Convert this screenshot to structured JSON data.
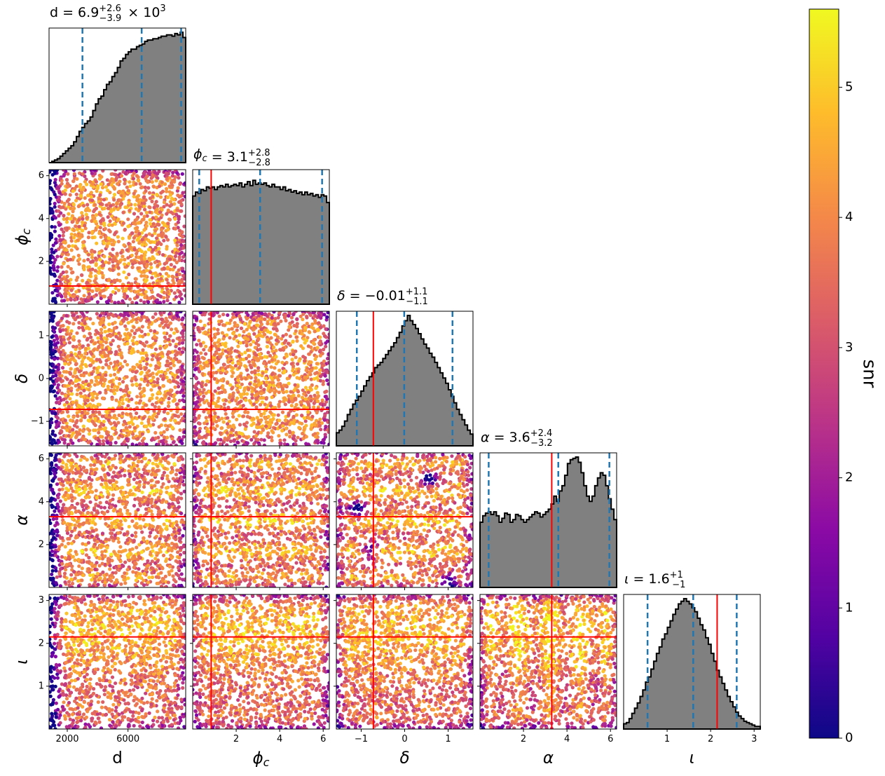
{
  "figure_type": "corner plot",
  "colorbar": {
    "label": "snr",
    "colormap": "plasma",
    "range": [
      0,
      5.6
    ],
    "ticks": [
      "0",
      "1",
      "2",
      "3",
      "4",
      "5"
    ]
  },
  "colors": {
    "histogram_fill": "#808080",
    "histogram_edge": "#000000",
    "quantile_line": "#1f77b4",
    "true_value_line": "#ff0000"
  },
  "chart_data": {
    "type": "scatter",
    "params": [
      {
        "key": "d",
        "title_value": "6.9",
        "title_plus": "+2.6",
        "title_minus": "−3.9",
        "title_suffix": "× 10",
        "title_exp": "3",
        "range": [
          800,
          9800
        ],
        "ticks": [
          2000,
          6000
        ],
        "tick_labels": [
          "2000",
          "6000"
        ],
        "quantiles": [
          3000,
          6900,
          9500
        ],
        "truth": null,
        "hist": [
          0,
          0.01,
          0.02,
          0.03,
          0.05,
          0.07,
          0.09,
          0.11,
          0.13,
          0.16,
          0.2,
          0.24,
          0.27,
          0.3,
          0.32,
          0.35,
          0.4,
          0.45,
          0.49,
          0.51,
          0.56,
          0.6,
          0.62,
          0.66,
          0.69,
          0.73,
          0.78,
          0.8,
          0.83,
          0.85,
          0.87,
          0.87,
          0.89,
          0.9,
          0.91,
          0.93,
          0.94,
          0.94,
          0.95,
          0.95,
          0.96,
          0.97,
          0.97,
          0.98,
          0.98,
          0.97,
          0.99,
          0.98,
          1,
          0.96
        ]
      },
      {
        "key": "phi_c",
        "title_value": "3.1",
        "title_plus": "+2.8",
        "title_minus": "−2.8",
        "range": [
          0,
          6.283
        ],
        "ticks": [
          2,
          4,
          6
        ],
        "tick_labels": [
          "2",
          "4",
          "6"
        ],
        "quantiles": [
          0.3,
          3.1,
          5.95
        ],
        "truth": 0.85,
        "hist": [
          0.83,
          0.86,
          0.85,
          0.88,
          0.87,
          0.9,
          0.89,
          0.9,
          0.88,
          0.9,
          0.91,
          0.9,
          0.92,
          0.9,
          0.91,
          0.92,
          0.91,
          0.93,
          0.9,
          0.92,
          0.94,
          0.91,
          0.95,
          0.92,
          0.93,
          0.92,
          0.93,
          0.91,
          0.9,
          0.92,
          0.9,
          0.9,
          0.88,
          0.9,
          0.87,
          0.88,
          0.86,
          0.87,
          0.85,
          0.86,
          0.84,
          0.86,
          0.84,
          0.85,
          0.83,
          0.84,
          0.82,
          0.84,
          0.83,
          0.78
        ]
      },
      {
        "key": "delta",
        "title_value": "−0.01",
        "title_plus": "+1.1",
        "title_minus": "−1.1",
        "range": [
          -1.5708,
          1.5708
        ],
        "ticks": [
          -1,
          0,
          1
        ],
        "tick_labels": [
          "−1",
          "0",
          "1"
        ],
        "quantiles": [
          -1.1,
          -0.01,
          1.1
        ],
        "truth": -0.72,
        "hist": [
          0.1,
          0.12,
          0.15,
          0.19,
          0.24,
          0.28,
          0.32,
          0.35,
          0.38,
          0.42,
          0.46,
          0.5,
          0.53,
          0.56,
          0.6,
          0.62,
          0.64,
          0.67,
          0.7,
          0.73,
          0.76,
          0.79,
          0.83,
          0.87,
          0.92,
          0.96,
          1,
          0.96,
          0.93,
          0.9,
          0.86,
          0.82,
          0.78,
          0.75,
          0.71,
          0.68,
          0.64,
          0.6,
          0.56,
          0.52,
          0.48,
          0.43,
          0.38,
          0.33,
          0.28,
          0.24,
          0.2,
          0.16,
          0.12,
          0.09
        ]
      },
      {
        "key": "alpha",
        "title_value": "3.6",
        "title_plus": "+2.4",
        "title_minus": "−3.2",
        "range": [
          0,
          6.283
        ],
        "ticks": [
          2,
          4,
          6
        ],
        "tick_labels": [
          "2",
          "4",
          "6"
        ],
        "quantiles": [
          0.4,
          3.6,
          5.95
        ],
        "truth": 3.3,
        "hist": [
          0.5,
          0.55,
          0.57,
          0.58,
          0.56,
          0.58,
          0.55,
          0.5,
          0.53,
          0.57,
          0.56,
          0.5,
          0.52,
          0.56,
          0.55,
          0.52,
          0.5,
          0.52,
          0.54,
          0.56,
          0.58,
          0.57,
          0.54,
          0.56,
          0.58,
          0.6,
          0.64,
          0.7,
          0.66,
          0.74,
          0.78,
          0.86,
          0.95,
          0.98,
          0.99,
          1,
          0.96,
          0.88,
          0.78,
          0.7,
          0.66,
          0.7,
          0.78,
          0.84,
          0.88,
          0.86,
          0.78,
          0.68,
          0.6,
          0.52
        ]
      },
      {
        "key": "iota",
        "title_value": "1.6",
        "title_plus": "+1",
        "title_minus": "−1",
        "range": [
          0,
          3.1416
        ],
        "ticks": [
          1,
          2,
          3
        ],
        "tick_labels": [
          "1",
          "2",
          "3"
        ],
        "quantiles": [
          0.55,
          1.6,
          2.6
        ],
        "truth": 2.15,
        "hist": [
          0.04,
          0.05,
          0.08,
          0.12,
          0.16,
          0.2,
          0.25,
          0.3,
          0.36,
          0.4,
          0.46,
          0.52,
          0.58,
          0.63,
          0.69,
          0.73,
          0.78,
          0.83,
          0.88,
          0.92,
          0.96,
          0.98,
          1,
          0.98,
          0.96,
          0.93,
          0.9,
          0.85,
          0.8,
          0.76,
          0.7,
          0.65,
          0.58,
          0.52,
          0.45,
          0.4,
          0.35,
          0.3,
          0.25,
          0.21,
          0.17,
          0.13,
          0.1,
          0.08,
          0.06,
          0.05,
          0.04,
          0.03,
          0.02,
          0.02
        ]
      }
    ]
  }
}
